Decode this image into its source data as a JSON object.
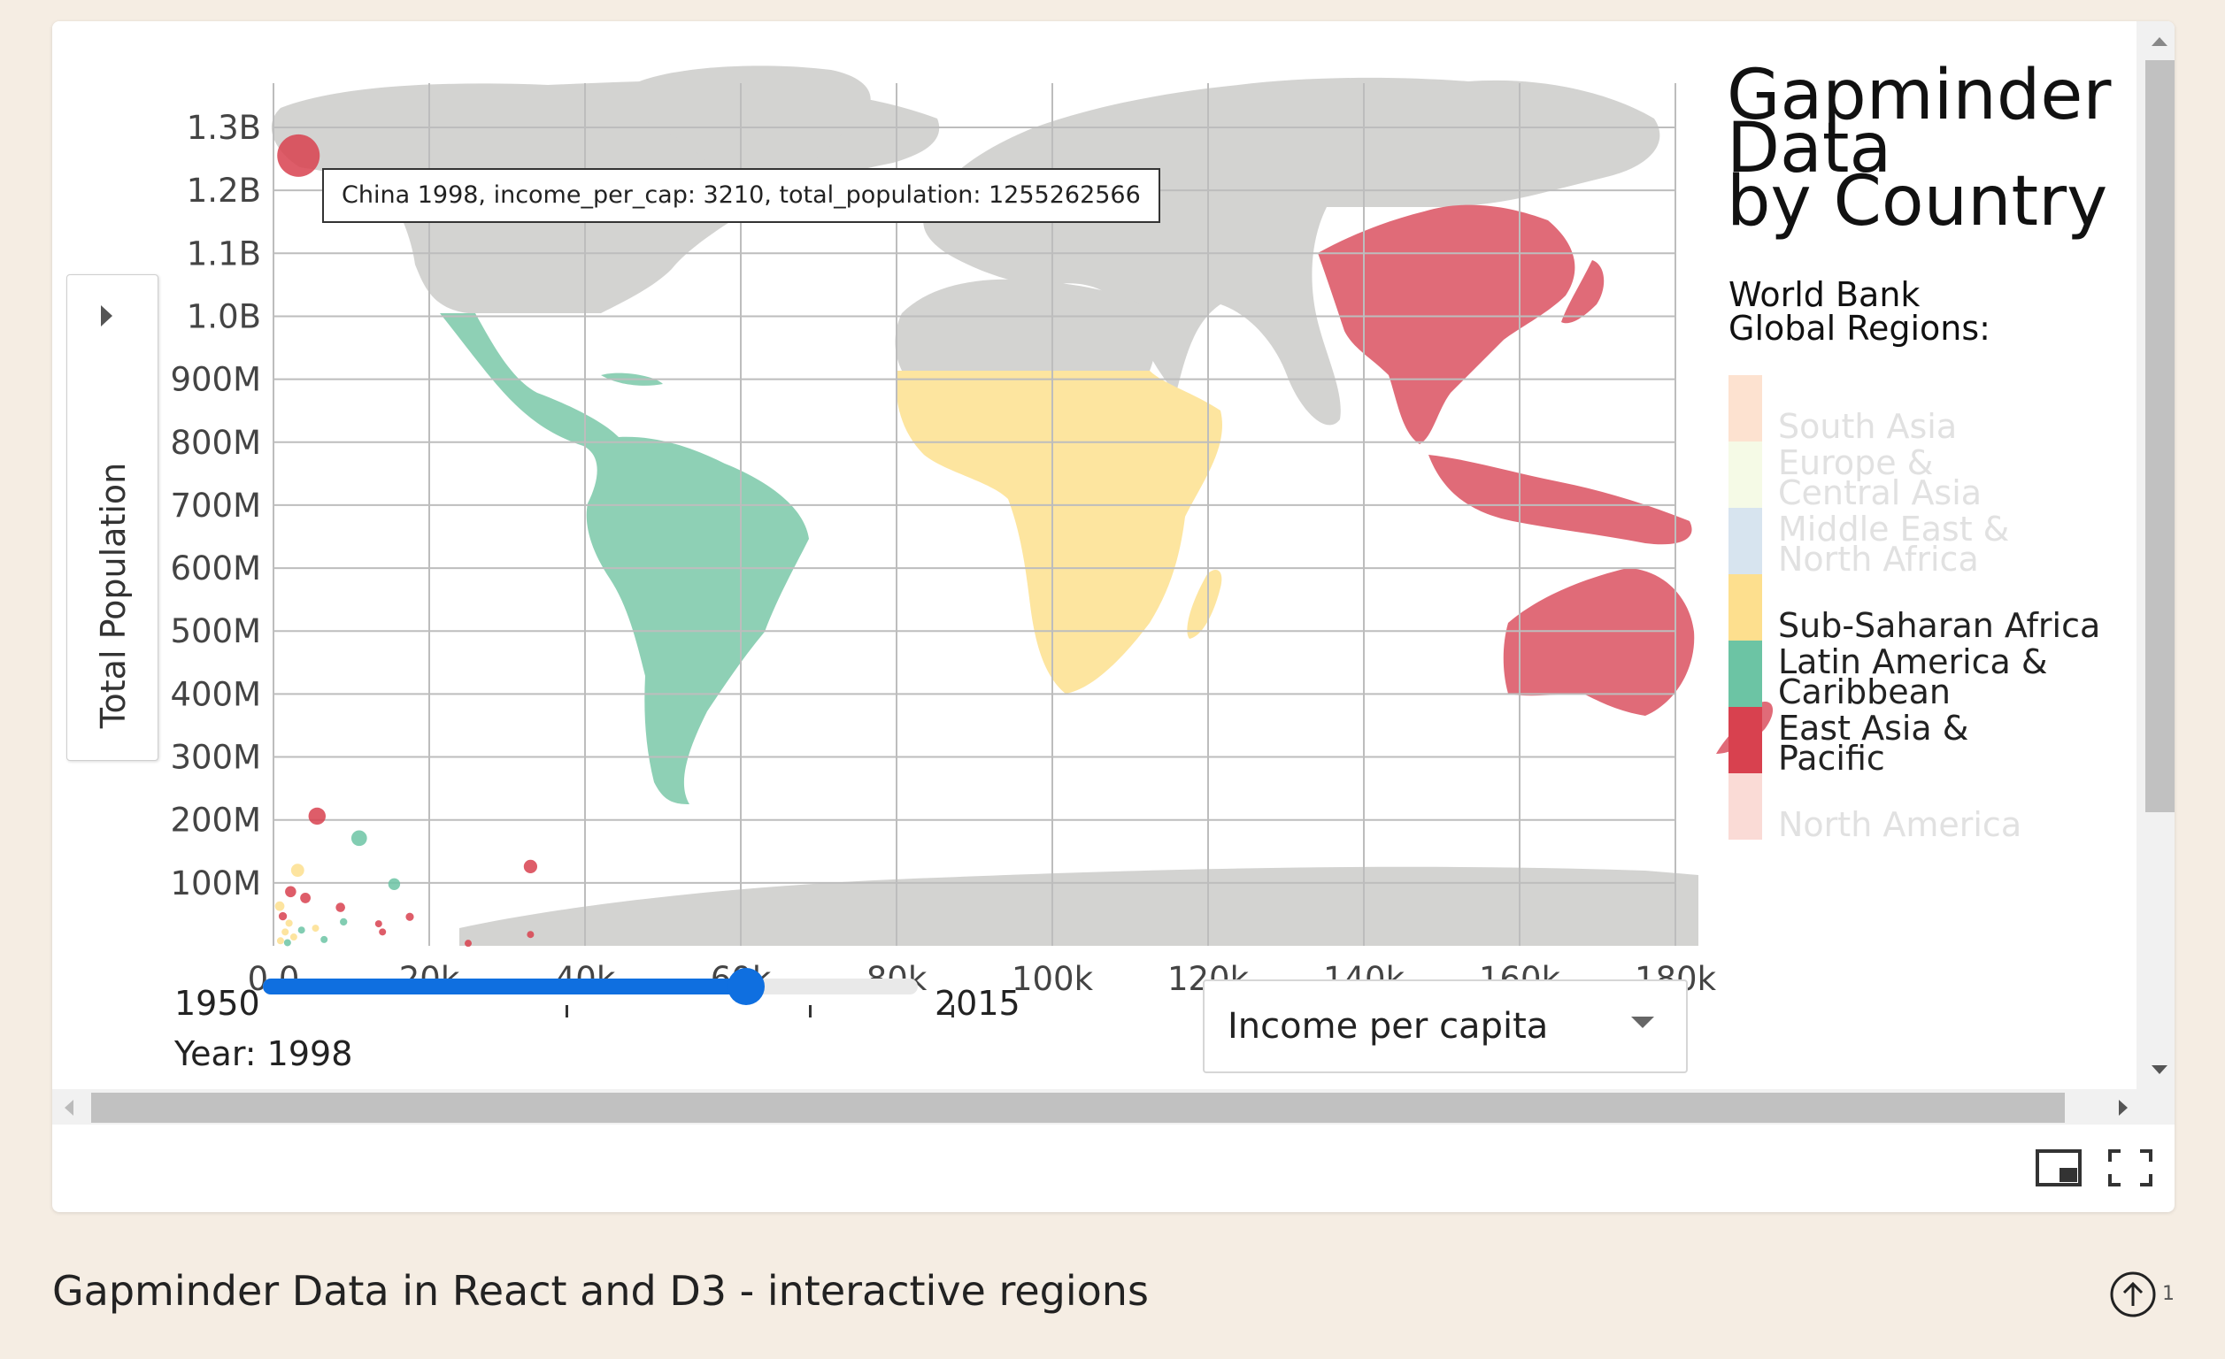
{
  "card": {
    "title_lines": [
      "Gapminder",
      "Data",
      "by Country"
    ],
    "subtitle_lines": [
      "World Bank",
      "Global Regions:"
    ],
    "tooltip": "China 1998, income_per_cap: 3210, total_population: 1255262566",
    "y_axis_title": "Total Population",
    "legend": [
      {
        "label_lines": [
          "South Asia"
        ],
        "color": "#fde2d0",
        "label_color": "#e1e1e1"
      },
      {
        "label_lines": [
          "Europe &",
          "Central Asia"
        ],
        "color": "#f5fae6",
        "label_color": "#e1e1e1"
      },
      {
        "label_lines": [
          "Middle East &",
          "North Africa"
        ],
        "color": "#d7e4ef",
        "label_color": "#e1e1e1"
      },
      {
        "label_lines": [
          "Sub-Saharan Africa"
        ],
        "color": "#fddf8e",
        "label_color": "#222222"
      },
      {
        "label_lines": [
          "Latin America &",
          "Caribbean"
        ],
        "color": "#6cc4a4",
        "label_color": "#222222"
      },
      {
        "label_lines": [
          "East Asia &",
          "Pacific"
        ],
        "color": "#d8414f",
        "label_color": "#222222"
      },
      {
        "label_lines": [
          "North America"
        ],
        "color": "#fadbd6",
        "label_color": "#e1e1e1"
      }
    ],
    "slider": {
      "min_label": "1950",
      "max_label": "2015",
      "min": 1950,
      "max": 2015,
      "value": 1998,
      "year_readout": "Year: 1998"
    },
    "metric_select": {
      "selected": "Income per capita"
    }
  },
  "chart_data": {
    "type": "scatter",
    "xlabel": "",
    "ylabel": "Total Population",
    "xlim": [
      0,
      180000
    ],
    "ylim": [
      0,
      1300000000
    ],
    "x_ticks": [
      "0.0",
      "20k",
      "40k",
      "60k",
      "80k",
      "100k",
      "120k",
      "140k",
      "160k",
      "180k"
    ],
    "y_ticks": [
      "100M",
      "200M",
      "300M",
      "400M",
      "500M",
      "600M",
      "700M",
      "800M",
      "900M",
      "1.0B",
      "1.1B",
      "1.2B",
      "1.3B"
    ],
    "grid": true,
    "background": "world map shaded by World Bank region",
    "points": [
      {
        "x": 3210,
        "y": 1255262566,
        "region": "East Asia & Pacific"
      },
      {
        "x": 5600,
        "y": 206000000,
        "region": "East Asia & Pacific"
      },
      {
        "x": 11000,
        "y": 171000000,
        "region": "Latin America & Caribbean"
      },
      {
        "x": 3100,
        "y": 120000000,
        "region": "Sub-Saharan Africa"
      },
      {
        "x": 15500,
        "y": 98000000,
        "region": "Latin America & Caribbean"
      },
      {
        "x": 33000,
        "y": 126000000,
        "region": "East Asia & Pacific"
      },
      {
        "x": 2200,
        "y": 86000000,
        "region": "East Asia & Pacific"
      },
      {
        "x": 4100,
        "y": 76000000,
        "region": "East Asia & Pacific"
      },
      {
        "x": 8600,
        "y": 61000000,
        "region": "East Asia & Pacific"
      },
      {
        "x": 800,
        "y": 63000000,
        "region": "Sub-Saharan Africa"
      },
      {
        "x": 1200,
        "y": 47000000,
        "region": "East Asia & Pacific"
      },
      {
        "x": 17500,
        "y": 46000000,
        "region": "East Asia & Pacific"
      },
      {
        "x": 9000,
        "y": 38000000,
        "region": "Latin America & Caribbean"
      },
      {
        "x": 13500,
        "y": 35000000,
        "region": "East Asia & Pacific"
      },
      {
        "x": 2000,
        "y": 36000000,
        "region": "Sub-Saharan Africa"
      },
      {
        "x": 3600,
        "y": 25000000,
        "region": "Latin America & Caribbean"
      },
      {
        "x": 5400,
        "y": 28000000,
        "region": "Sub-Saharan Africa"
      },
      {
        "x": 1500,
        "y": 22000000,
        "region": "Sub-Saharan Africa"
      },
      {
        "x": 14000,
        "y": 22000000,
        "region": "East Asia & Pacific"
      },
      {
        "x": 2600,
        "y": 14000000,
        "region": "Sub-Saharan Africa"
      },
      {
        "x": 6500,
        "y": 10000000,
        "region": "Latin America & Caribbean"
      },
      {
        "x": 33000,
        "y": 18000000,
        "region": "East Asia & Pacific"
      },
      {
        "x": 900,
        "y": 8000000,
        "region": "Sub-Saharan Africa"
      },
      {
        "x": 25000,
        "y": 4000000,
        "region": "East Asia & Pacific"
      },
      {
        "x": 1800,
        "y": 5000000,
        "region": "Latin America & Caribbean"
      }
    ]
  },
  "footer": {
    "caption": "Gapminder Data in React and D3 - interactive regions",
    "upvote_count": "1"
  },
  "icons": {
    "pip": "picture-in-picture-icon",
    "fullscreen": "fullscreen-icon",
    "upvote": "upvote-icon",
    "ylabel_toggle": "caret-right-icon",
    "select_caret": "chevron-down-icon"
  },
  "colors": {
    "land": "#d3d3d1",
    "east_asia": "#e06b78",
    "latin_america": "#8ed0b5",
    "sub_saharan": "#fde59f",
    "slider": "#0f6fe0",
    "page_bg": "#f5ede3"
  }
}
